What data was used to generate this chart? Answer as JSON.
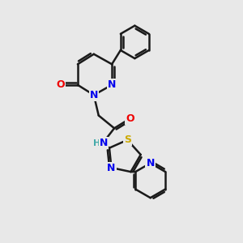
{
  "bg_color": "#e8e8e8",
  "bond_color": "#1a1a1a",
  "bond_width": 1.8,
  "atom_colors": {
    "N": "#0000ee",
    "O": "#ee0000",
    "S": "#ccaa00",
    "H": "#44aaaa",
    "C": "#1a1a1a"
  },
  "font_size": 9,
  "fig_size": [
    3.0,
    3.0
  ],
  "dpi": 100
}
